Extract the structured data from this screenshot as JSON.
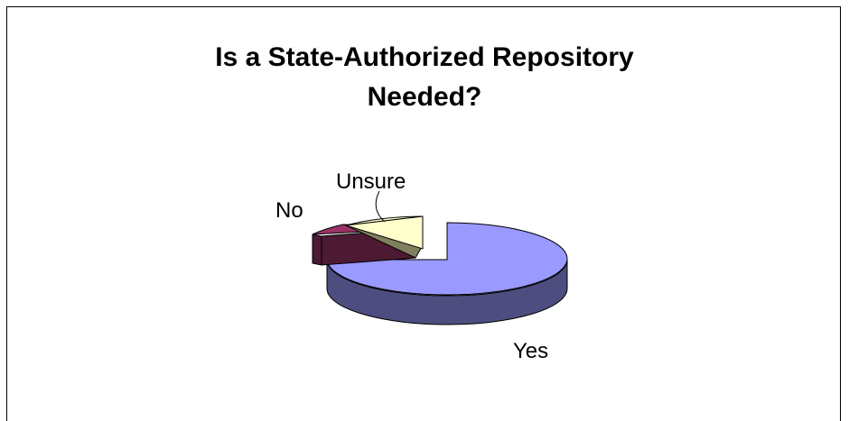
{
  "chart_data": {
    "type": "pie",
    "title_lines": [
      "Is a State-Authorized Repository",
      "Needed?"
    ],
    "slices": [
      {
        "label": "Yes",
        "value": 83,
        "color": "#9999ff"
      },
      {
        "label": "No",
        "value": 5,
        "color": "#993366"
      },
      {
        "label": "Unsure",
        "value": 12,
        "color": "#ffffcc"
      }
    ],
    "legend": "none",
    "three_d": true
  }
}
